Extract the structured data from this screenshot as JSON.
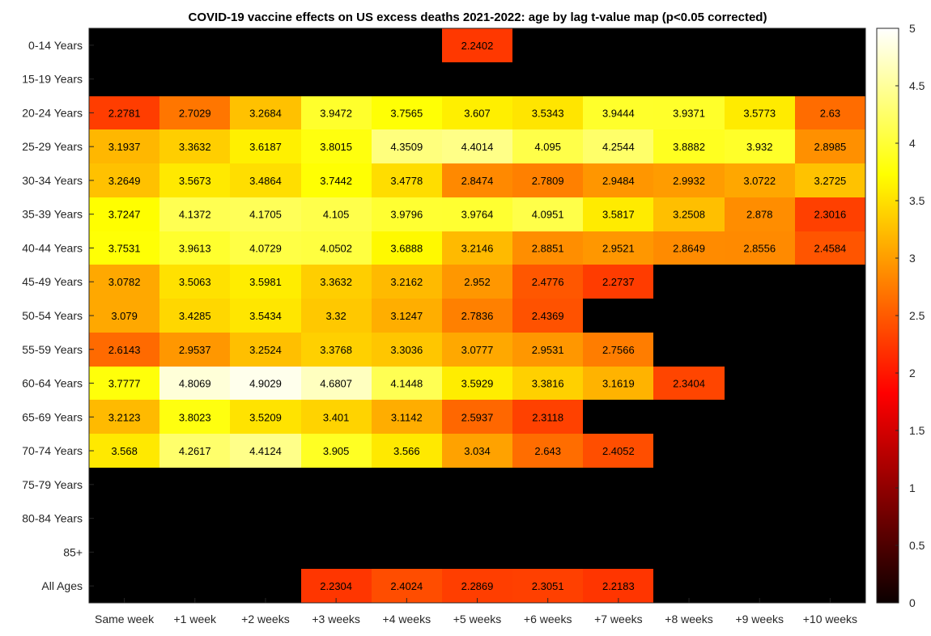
{
  "chart_data": {
    "type": "heatmap",
    "title": "COVID-19 vaccine effects on US excess deaths 2021-2022: age by lag t-value map (p<0.05 corrected)",
    "xlabel": "",
    "ylabel": "",
    "x_categories": [
      "Same week",
      "+1 week",
      "+2 weeks",
      "+3 weeks",
      "+4 weeks",
      "+5 weeks",
      "+6 weeks",
      "+7 weeks",
      "+8 weeks",
      "+9 weeks",
      "+10 weeks"
    ],
    "y_categories": [
      "0-14 Years",
      "15-19 Years",
      "20-24 Years",
      "25-29 Years",
      "30-34 Years",
      "35-39 Years",
      "40-44 Years",
      "45-49 Years",
      "50-54 Years",
      "55-59 Years",
      "60-64 Years",
      "65-69 Years",
      "70-74 Years",
      "75-79 Years",
      "80-84 Years",
      "85+",
      "All Ages"
    ],
    "values": [
      [
        null,
        null,
        null,
        null,
        null,
        2.2402,
        null,
        null,
        null,
        null,
        null
      ],
      [
        null,
        null,
        null,
        null,
        null,
        null,
        null,
        null,
        null,
        null,
        null
      ],
      [
        2.2781,
        2.7029,
        3.2684,
        3.9472,
        3.7565,
        3.607,
        3.5343,
        3.9444,
        3.9371,
        3.5773,
        2.63
      ],
      [
        3.1937,
        3.3632,
        3.6187,
        3.8015,
        4.3509,
        4.4014,
        4.095,
        4.2544,
        3.8882,
        3.932,
        2.8985
      ],
      [
        3.2649,
        3.5673,
        3.4864,
        3.7442,
        3.4778,
        2.8474,
        2.7809,
        2.9484,
        2.9932,
        3.0722,
        3.2725
      ],
      [
        3.7247,
        4.1372,
        4.1705,
        4.105,
        3.9796,
        3.9764,
        4.0951,
        3.5817,
        3.2508,
        2.878,
        2.3016
      ],
      [
        3.7531,
        3.9613,
        4.0729,
        4.0502,
        3.6888,
        3.2146,
        2.8851,
        2.9521,
        2.8649,
        2.8556,
        2.4584
      ],
      [
        3.0782,
        3.5063,
        3.5981,
        3.3632,
        3.2162,
        2.952,
        2.4776,
        2.2737,
        null,
        null,
        null
      ],
      [
        3.079,
        3.4285,
        3.5434,
        3.32,
        3.1247,
        2.7836,
        2.4369,
        null,
        null,
        null,
        null
      ],
      [
        2.6143,
        2.9537,
        3.2524,
        3.3768,
        3.3036,
        3.0777,
        2.9531,
        2.7566,
        null,
        null,
        null
      ],
      [
        3.7777,
        4.8069,
        4.9029,
        4.6807,
        4.1448,
        3.5929,
        3.3816,
        3.1619,
        2.3404,
        null,
        null
      ],
      [
        3.2123,
        3.8023,
        3.5209,
        3.401,
        3.1142,
        2.5937,
        2.3118,
        null,
        null,
        null,
        null
      ],
      [
        3.568,
        4.2617,
        4.4124,
        3.905,
        3.566,
        3.034,
        2.643,
        2.4052,
        null,
        null,
        null
      ],
      [
        null,
        null,
        null,
        null,
        null,
        null,
        null,
        null,
        null,
        null,
        null
      ],
      [
        null,
        null,
        null,
        null,
        null,
        null,
        null,
        null,
        null,
        null,
        null
      ],
      [
        null,
        null,
        null,
        null,
        null,
        null,
        null,
        null,
        null,
        null,
        null
      ],
      [
        null,
        null,
        null,
        2.2304,
        2.4024,
        2.2869,
        2.3051,
        2.2183,
        null,
        null,
        null
      ]
    ],
    "colormap": "hot",
    "clim": [
      0,
      5
    ],
    "colorbar_ticks": [
      "0",
      "0.5",
      "1",
      "1.5",
      "2",
      "2.5",
      "3",
      "3.5",
      "4",
      "4.5",
      "5"
    ],
    "colorbar_position": "right",
    "grid": false
  }
}
